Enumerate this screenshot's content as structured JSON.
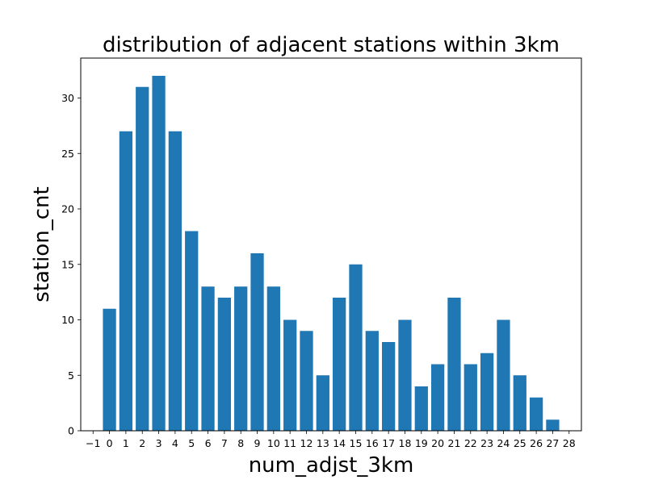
{
  "chart_data": {
    "type": "bar",
    "title": "distribution of adjacent stations within 3km",
    "xlabel": "num_adjst_3km",
    "ylabel": "station_cnt",
    "categories": [
      0,
      1,
      2,
      3,
      4,
      5,
      6,
      7,
      8,
      9,
      10,
      11,
      12,
      13,
      14,
      15,
      16,
      17,
      18,
      19,
      20,
      21,
      22,
      23,
      24,
      25,
      26,
      27
    ],
    "values": [
      11,
      27,
      31,
      32,
      27,
      18,
      13,
      12,
      13,
      16,
      13,
      10,
      9,
      5,
      12,
      15,
      9,
      8,
      10,
      4,
      6,
      12,
      6,
      7,
      10,
      5,
      3,
      1
    ],
    "xticks": [
      -1,
      0,
      1,
      2,
      3,
      4,
      5,
      6,
      7,
      8,
      9,
      10,
      11,
      12,
      13,
      14,
      15,
      16,
      17,
      18,
      19,
      20,
      21,
      22,
      23,
      24,
      25,
      26,
      27,
      28
    ],
    "xlim": [
      -1.75,
      28.75
    ],
    "yticks": [
      0,
      5,
      10,
      15,
      20,
      25,
      30
    ],
    "ylim": [
      0,
      33.6
    ],
    "bar_color": "#1f77b4",
    "grid": false,
    "legend": false
  }
}
